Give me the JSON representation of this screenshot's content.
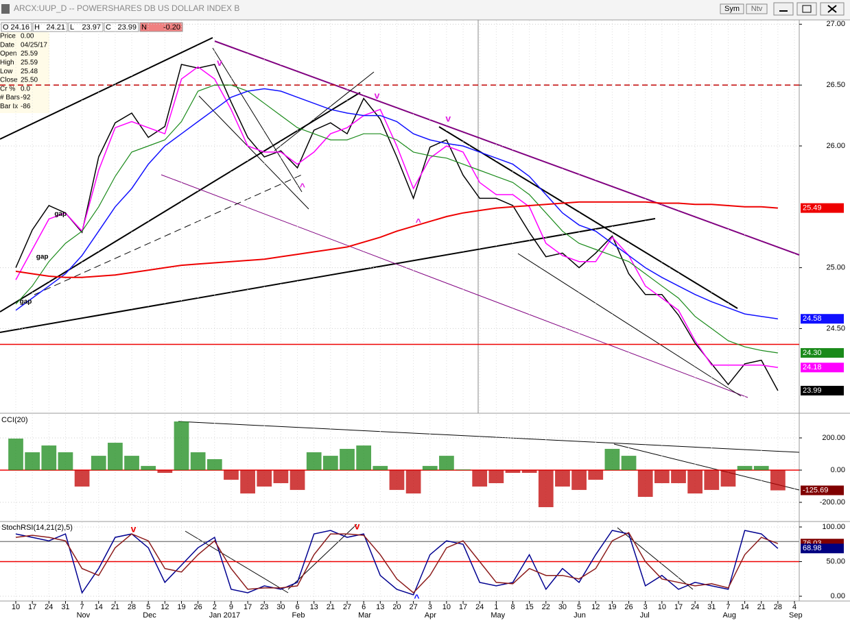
{
  "window": {
    "toolbar": [
      "Sym",
      "Ntv"
    ]
  },
  "info": {
    "header": [
      {
        "key": "O",
        "value": "24.16"
      },
      {
        "key": "H",
        "value": "24.21"
      },
      {
        "key": "L",
        "value": "23.97"
      },
      {
        "key": "C",
        "value": "23.99"
      },
      {
        "key": "N",
        "value": "-0.20"
      }
    ],
    "rows": [
      {
        "label": "Price",
        "value": "0.00"
      },
      {
        "label": "Date",
        "value": "04/25/17"
      },
      {
        "label": "Open",
        "value": "25.59"
      },
      {
        "label": "High",
        "value": "25.59"
      },
      {
        "label": "Low",
        "value": "25.48"
      },
      {
        "label": "Close",
        "value": "25.50"
      },
      {
        "label": "Cr %",
        "value": "0.0"
      },
      {
        "label": "# Bars",
        "value": "-92"
      },
      {
        "label": "Bar Ix",
        "value": "-86"
      }
    ]
  },
  "x_axis": {
    "day_labels": [
      "10",
      "17",
      "24",
      "31",
      "7",
      "14",
      "21",
      "28",
      "5",
      "12",
      "19",
      "26",
      "2",
      "9",
      "17",
      "23",
      "30",
      "6",
      "13",
      "21",
      "27",
      "6",
      "13",
      "20",
      "27",
      "3",
      "10",
      "17",
      "24",
      "1",
      "8",
      "15",
      "22",
      "30",
      "5",
      "12",
      "19",
      "26",
      "3",
      "10",
      "17",
      "24",
      "31",
      "7",
      "14",
      "21",
      "28",
      "4"
    ],
    "month_labels": [
      null,
      null,
      null,
      null,
      "Nov",
      null,
      null,
      null,
      "Dec",
      null,
      null,
      null,
      "Jan 2017",
      null,
      null,
      null,
      null,
      "Feb",
      null,
      null,
      null,
      "Mar",
      null,
      null,
      null,
      "Apr",
      null,
      null,
      null,
      "May",
      null,
      null,
      null,
      null,
      "Jun",
      null,
      null,
      null,
      "Jul",
      null,
      null,
      null,
      null,
      "Aug",
      null,
      null,
      null,
      "Sep"
    ]
  },
  "chart_data": [
    {
      "type": "line",
      "title": "ARCX:UUP_D -- POWERSHARES DB US DOLLAR INDEX B",
      "ylim": [
        23.81,
        27.03
      ],
      "yticks": [
        {
          "value": 24.5,
          "label": "24.50"
        },
        {
          "value": 25,
          "label": "25.00"
        },
        {
          "value": 26,
          "label": "26.00"
        },
        {
          "value": 26.5,
          "label": "26.50"
        },
        {
          "value": 27,
          "label": "27.00"
        }
      ],
      "grid": true,
      "series": [
        {
          "name": "Close",
          "color": "#000000",
          "width": 1.5,
          "values": [
            25.0,
            25.31,
            25.51,
            25.45,
            25.29,
            25.91,
            26.19,
            26.27,
            26.07,
            26.16,
            26.67,
            26.64,
            26.67,
            26.36,
            26.07,
            25.91,
            25.96,
            25.82,
            26.13,
            26.19,
            26.1,
            26.39,
            26.22,
            25.91,
            25.57,
            25.99,
            26.05,
            25.76,
            25.57,
            25.57,
            25.51,
            25.29,
            25.09,
            25.12,
            25.0,
            25.12,
            25.26,
            24.95,
            24.78,
            24.78,
            24.61,
            24.38,
            24.21,
            24.04,
            24.21,
            24.24,
            23.99,
            null
          ]
        },
        {
          "name": "MA short",
          "color": "#ff00ff",
          "width": 1.5,
          "values": [
            24.9,
            25.15,
            25.4,
            25.45,
            25.3,
            25.8,
            26.15,
            26.2,
            26.15,
            26.1,
            26.55,
            26.65,
            26.55,
            26.3,
            26.0,
            25.95,
            25.95,
            25.85,
            25.95,
            26.1,
            26.15,
            26.25,
            26.3,
            26.0,
            25.65,
            25.9,
            26.0,
            25.95,
            25.7,
            25.6,
            25.6,
            25.5,
            25.2,
            25.1,
            25.05,
            25.05,
            25.25,
            25.1,
            24.85,
            24.75,
            24.65,
            24.4,
            24.2,
            24.2,
            24.2,
            24.2,
            24.18,
            null
          ]
        },
        {
          "name": "MA mid",
          "color": "#1a8a1a",
          "width": 1.2,
          "values": [
            24.7,
            24.85,
            25.05,
            25.2,
            25.3,
            25.5,
            25.75,
            25.95,
            26.0,
            26.05,
            26.2,
            26.45,
            26.5,
            26.5,
            26.45,
            26.35,
            26.25,
            26.15,
            26.1,
            26.05,
            26.05,
            26.1,
            26.1,
            26.05,
            25.95,
            25.92,
            25.9,
            25.85,
            25.8,
            25.75,
            25.7,
            25.6,
            25.45,
            25.3,
            25.2,
            25.15,
            25.1,
            25.05,
            24.95,
            24.85,
            24.75,
            24.6,
            24.5,
            24.4,
            24.35,
            24.32,
            24.3,
            null
          ]
        },
        {
          "name": "MA long",
          "color": "#1010ff",
          "width": 1.5,
          "values": [
            24.65,
            24.75,
            24.85,
            24.95,
            25.1,
            25.3,
            25.5,
            25.65,
            25.85,
            26.0,
            26.1,
            26.2,
            26.3,
            26.4,
            26.45,
            26.47,
            26.45,
            26.4,
            26.35,
            26.3,
            26.27,
            26.25,
            26.25,
            26.2,
            26.1,
            26.05,
            26.02,
            26.0,
            25.95,
            25.9,
            25.85,
            25.75,
            25.6,
            25.45,
            25.35,
            25.3,
            25.2,
            25.1,
            25.0,
            24.92,
            24.85,
            24.78,
            24.72,
            24.67,
            24.62,
            24.6,
            24.58,
            null
          ]
        },
        {
          "name": "MA 200",
          "color": "#ee0000",
          "width": 2,
          "values": [
            24.97,
            24.95,
            24.93,
            24.92,
            24.92,
            24.93,
            24.94,
            24.96,
            24.98,
            25.0,
            25.02,
            25.03,
            25.04,
            25.05,
            25.06,
            25.07,
            25.09,
            25.11,
            25.13,
            25.15,
            25.17,
            25.21,
            25.25,
            25.3,
            25.34,
            25.38,
            25.42,
            25.45,
            25.47,
            25.49,
            25.5,
            25.51,
            25.52,
            25.53,
            25.54,
            25.54,
            25.54,
            25.54,
            25.54,
            25.53,
            25.53,
            25.52,
            25.52,
            25.51,
            25.5,
            25.5,
            25.49,
            null
          ]
        }
      ],
      "hlines": [
        {
          "value": 26.5,
          "color": "#c00000",
          "dash": true
        },
        {
          "value": 24.37,
          "color": "#ee0000",
          "dash": false
        }
      ],
      "tags": [
        {
          "value": 25.49,
          "label": "25.49",
          "color": "#ee0000"
        },
        {
          "value": 24.58,
          "label": "24.58",
          "color": "#1010ff"
        },
        {
          "value": 24.3,
          "label": "24.30",
          "color": "#1a8a1a"
        },
        {
          "value": 24.18,
          "label": "24.18",
          "color": "#ff00ff"
        },
        {
          "value": 23.99,
          "label": "23.99",
          "color": "#000000"
        }
      ],
      "annotations": [
        {
          "text": "v",
          "x": 12.3,
          "y": 26.68,
          "color": "#e020e0"
        },
        {
          "text": "^",
          "x": 17.3,
          "y": 25.66,
          "color": "#e020e0"
        },
        {
          "text": "v",
          "x": 21.8,
          "y": 26.41,
          "color": "#e020e0"
        },
        {
          "text": "^",
          "x": 24.3,
          "y": 25.37,
          "color": "#e020e0"
        },
        {
          "text": "v",
          "x": 26.1,
          "y": 26.22,
          "color": "#e020e0"
        },
        {
          "text": "gap",
          "x": 2.7,
          "y": 25.44,
          "color": "#000000"
        },
        {
          "text": "gap",
          "x": 1.6,
          "y": 25.09,
          "color": "#000000"
        },
        {
          "text": "gap",
          "x": 0.6,
          "y": 24.72,
          "color": "#000000"
        }
      ]
    },
    {
      "type": "bar",
      "title": "CCI(20)",
      "ylim": [
        -314.9,
        344.7
      ],
      "yticks": [
        {
          "value": 200,
          "label": "200.00"
        },
        {
          "value": 0,
          "label": "0.00"
        },
        {
          "value": -200,
          "label": "-200.00"
        }
      ],
      "grid": true,
      "colors": {
        "positive": "#1a8a1a",
        "negative": "#c00000"
      },
      "values": [
        196,
        111,
        153,
        111,
        -102,
        89,
        170,
        89,
        26,
        -17,
        302,
        111,
        68,
        -60,
        -145,
        -102,
        -81,
        -123,
        111,
        89,
        132,
        153,
        26,
        -123,
        -145,
        26,
        89,
        4,
        -102,
        -81,
        -17,
        -17,
        -230,
        -102,
        -123,
        -60,
        132,
        89,
        -166,
        -81,
        -81,
        -145,
        -123,
        -102,
        26,
        26,
        -125.69,
        null
      ],
      "hlines": [
        {
          "value": 0,
          "color": "#ee0000",
          "dash": false
        }
      ],
      "tags": [
        {
          "value": -125.69,
          "label": "-125.69",
          "color": "#800000"
        }
      ],
      "annotations": []
    },
    {
      "type": "line",
      "title": "StochRSI(14,21(2),5)",
      "ylim": [
        -6.9,
        106.9
      ],
      "yticks": [
        {
          "value": 100,
          "label": "100.00"
        },
        {
          "value": 50,
          "label": "50.00"
        },
        {
          "value": 0,
          "label": "0.00"
        }
      ],
      "grid": true,
      "series": [
        {
          "name": "Fast",
          "color": "#000090",
          "width": 1.5,
          "values": [
            90,
            85,
            80,
            90,
            5,
            40,
            85,
            90,
            70,
            20,
            45,
            70,
            85,
            10,
            5,
            15,
            10,
            20,
            90,
            95,
            85,
            90,
            30,
            10,
            2,
            60,
            80,
            75,
            20,
            15,
            20,
            60,
            10,
            40,
            20,
            60,
            95,
            90,
            15,
            30,
            10,
            20,
            15,
            10,
            95,
            90,
            68.98,
            null
          ]
        },
        {
          "name": "Slow",
          "color": "#8b1a1a",
          "width": 1.5,
          "values": [
            85,
            88,
            85,
            80,
            40,
            30,
            70,
            90,
            80,
            40,
            35,
            60,
            80,
            40,
            10,
            12,
            12,
            15,
            60,
            90,
            90,
            88,
            60,
            25,
            5,
            30,
            70,
            80,
            50,
            20,
            18,
            40,
            30,
            30,
            25,
            40,
            80,
            92,
            50,
            25,
            20,
            15,
            18,
            12,
            60,
            85,
            76.03,
            null
          ]
        }
      ],
      "hlines": [
        {
          "value": 50,
          "color": "#ee0000",
          "dash": false
        },
        {
          "value": 79,
          "color": "#888888",
          "dash": false
        }
      ],
      "tags": [
        {
          "value": 76.03,
          "label": "76.03",
          "color": "#800000"
        },
        {
          "value": 68.98,
          "label": "68.98",
          "color": "#000080"
        }
      ],
      "annotations": [
        {
          "text": "v",
          "x": 7.1,
          "y": 96,
          "color": "#ee0000"
        },
        {
          "text": "v",
          "x": 20.6,
          "y": 100,
          "color": "#ee0000"
        },
        {
          "text": "^",
          "x": 24.2,
          "y": -3,
          "color": "#1010ff"
        }
      ]
    }
  ]
}
